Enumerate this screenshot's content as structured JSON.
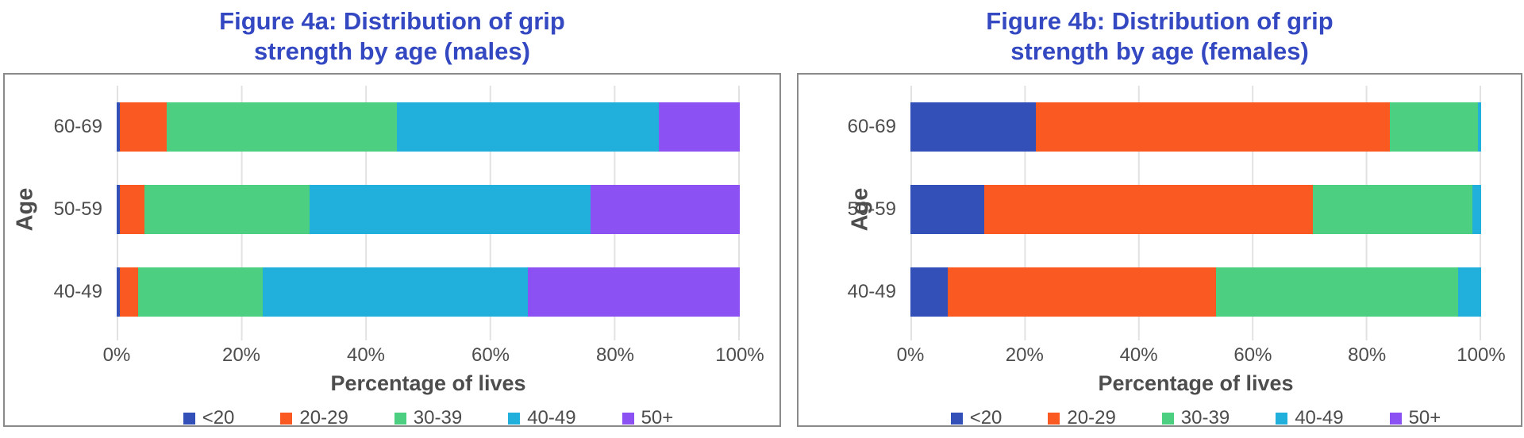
{
  "colors": {
    "title": "#3348c1",
    "axis_text": "#4d4d4d",
    "gridline": "#e2e2e2",
    "panel_border": "#8a8a8a",
    "series": {
      "<20": "#3350b8",
      "20-29": "#fa5a22",
      "30-39": "#4ccf81",
      "40-49": "#21afdc",
      "50+": "#8b51f2"
    }
  },
  "chart_data": [
    {
      "type": "bar",
      "stacked": true,
      "orientation": "horizontal",
      "title": "Figure 4a: Distribution of grip strength by age (males)",
      "title_lines": [
        "Figure 4a: Distribution of grip",
        "strength by age (males)"
      ],
      "categories": [
        "60-69",
        "50-59",
        "40-49"
      ],
      "series": [
        {
          "name": "<20",
          "color": "#3350b8",
          "values": [
            0.5,
            0.5,
            0.5
          ]
        },
        {
          "name": "20-29",
          "color": "#fa5a22",
          "values": [
            7.5,
            4.0,
            3.0
          ]
        },
        {
          "name": "30-39",
          "color": "#4ccf81",
          "values": [
            37.0,
            26.5,
            20.0
          ]
        },
        {
          "name": "40-49",
          "color": "#21afdc",
          "values": [
            42.0,
            45.0,
            42.5
          ]
        },
        {
          "name": "50+",
          "color": "#8b51f2",
          "values": [
            13.0,
            24.0,
            34.0
          ]
        }
      ],
      "xlabel": "Percentage of lives",
      "ylabel": "Age",
      "x_ticks": [
        "0%",
        "20%",
        "40%",
        "60%",
        "80%",
        "100%"
      ],
      "xlim": [
        0,
        100
      ],
      "grid": true,
      "legend_position": "bottom"
    },
    {
      "type": "bar",
      "stacked": true,
      "orientation": "horizontal",
      "title": "Figure 4b: Distribution of grip strength by age (females)",
      "title_lines": [
        "Figure 4b: Distribution of grip",
        "strength by age (females)"
      ],
      "categories": [
        "60-69",
        "50-59",
        "40-49"
      ],
      "series": [
        {
          "name": "<20",
          "color": "#3350b8",
          "values": [
            22.0,
            13.0,
            6.5
          ]
        },
        {
          "name": "20-29",
          "color": "#fa5a22",
          "values": [
            62.0,
            57.5,
            47.0
          ]
        },
        {
          "name": "30-39",
          "color": "#4ccf81",
          "values": [
            15.5,
            28.0,
            42.5
          ]
        },
        {
          "name": "40-49",
          "color": "#21afdc",
          "values": [
            0.5,
            1.5,
            4.0
          ]
        },
        {
          "name": "50+",
          "color": "#8b51f2",
          "values": [
            0,
            0,
            0
          ]
        }
      ],
      "xlabel": "Percentage of lives",
      "ylabel": "Age",
      "x_ticks": [
        "0%",
        "20%",
        "40%",
        "60%",
        "80%",
        "100%"
      ],
      "xlim": [
        0,
        100
      ],
      "grid": true,
      "legend_position": "bottom"
    }
  ]
}
